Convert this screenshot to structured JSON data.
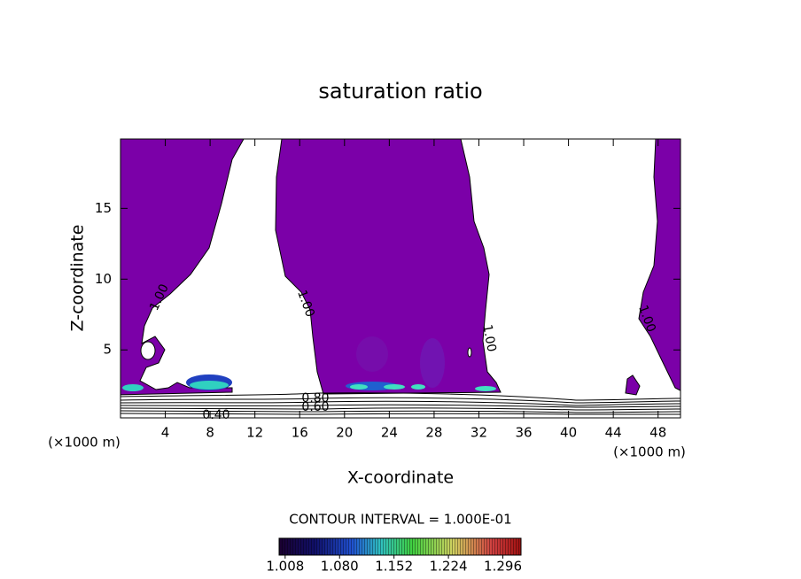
{
  "chart_data": {
    "type": "contour",
    "title": "saturation ratio",
    "xlabel": "X-coordinate",
    "ylabel": "Z-coordinate",
    "x_unit": "(×1000 m)",
    "xlim": [
      0,
      50
    ],
    "xticks": [
      4,
      8,
      12,
      16,
      20,
      24,
      28,
      32,
      36,
      40,
      44,
      48
    ],
    "ylim": [
      0.2,
      19.9
    ],
    "yticks": [
      5,
      10,
      15
    ],
    "fill_color": "#7b00a8",
    "contour_labels": [
      "1.00",
      "1.00",
      "1.00",
      "1.00",
      "0.40",
      "0.80",
      "0.60"
    ],
    "colorbar": {
      "label": "CONTOUR INTERVAL = 1.000E-01",
      "lim": [
        1.0,
        1.32
      ],
      "ticks": [
        1.008,
        {
          "value": 1.08,
          "label": "1.080"
        },
        1.152,
        1.224,
        1.296
      ]
    }
  }
}
